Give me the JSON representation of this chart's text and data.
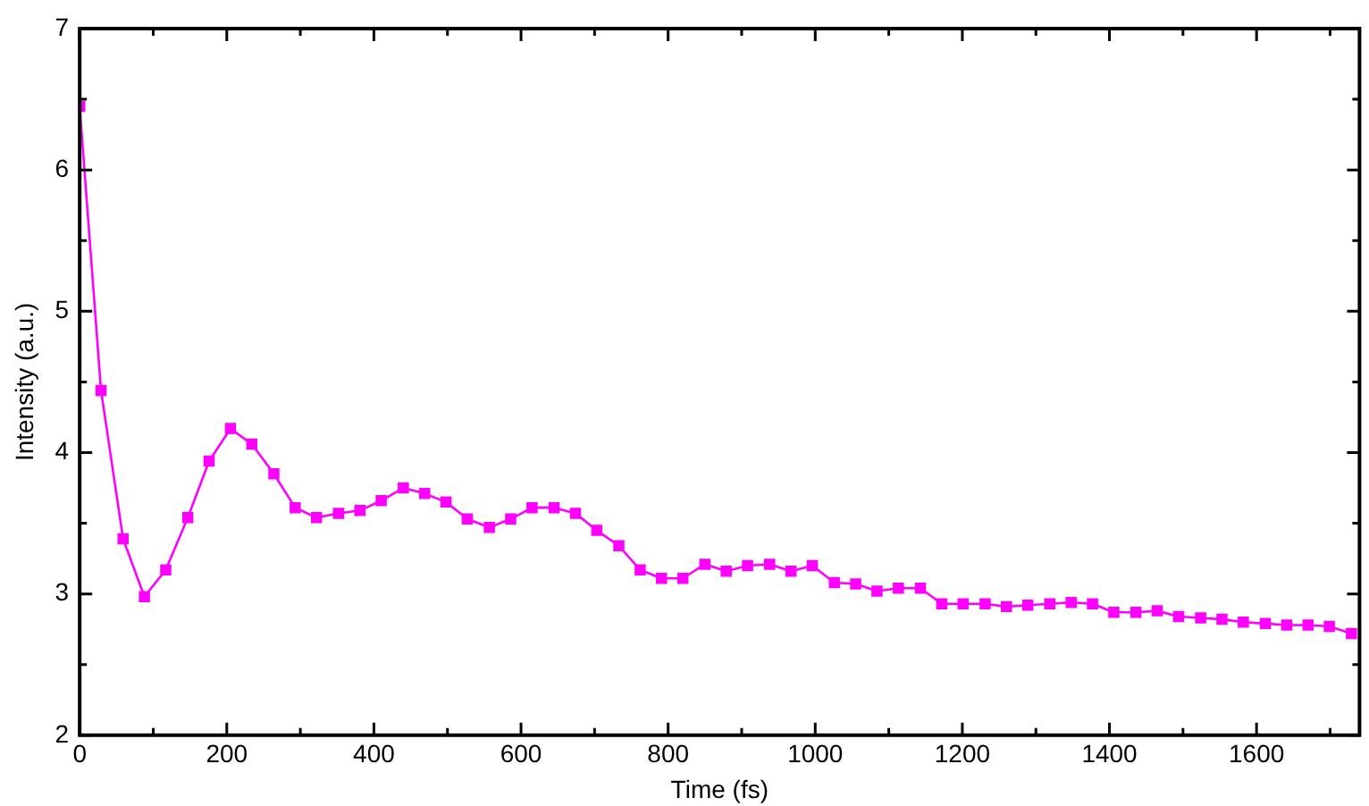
{
  "chart_data": {
    "type": "line",
    "xlabel": "Time (fs)",
    "ylabel": "Intensity (a.u.)",
    "x": [
      0,
      29,
      59,
      88,
      117,
      147,
      176,
      205,
      234,
      264,
      293,
      322,
      352,
      381,
      410,
      440,
      469,
      498,
      527,
      557,
      586,
      615,
      645,
      674,
      703,
      733,
      762,
      791,
      820,
      850,
      879,
      908,
      938,
      967,
      996,
      1026,
      1055,
      1084,
      1113,
      1143,
      1172,
      1201,
      1231,
      1260,
      1289,
      1319,
      1348,
      1377,
      1406,
      1436,
      1465,
      1494,
      1524,
      1553,
      1582,
      1612,
      1641,
      1670,
      1699,
      1729
    ],
    "series": [
      {
        "color": "#ff00ff",
        "values": [
          6.45,
          4.44,
          3.39,
          2.98,
          3.17,
          3.54,
          3.94,
          4.17,
          4.06,
          3.85,
          3.61,
          3.54,
          3.57,
          3.59,
          3.66,
          3.75,
          3.71,
          3.65,
          3.53,
          3.47,
          3.53,
          3.61,
          3.61,
          3.57,
          3.45,
          3.34,
          3.17,
          3.11,
          3.11,
          3.21,
          3.16,
          3.2,
          3.21,
          3.16,
          3.2,
          3.08,
          3.07,
          3.02,
          3.04,
          3.04,
          2.93,
          2.93,
          2.93,
          2.91,
          2.92,
          2.93,
          2.94,
          2.93,
          2.87,
          2.87,
          2.88,
          2.84,
          2.83,
          2.82,
          2.8,
          2.79,
          2.78,
          2.78,
          2.77,
          2.72
        ]
      }
    ],
    "xlim": [
      0,
      1740
    ],
    "xticks": [
      0,
      {
        "value": 100,
        "label": null
      },
      200,
      {
        "value": 300,
        "label": null
      },
      400,
      {
        "value": 500,
        "label": null
      },
      600,
      {
        "value": 700,
        "label": null
      },
      800,
      {
        "value": 900,
        "label": null
      },
      1000,
      {
        "value": 1100,
        "label": null
      },
      1200,
      {
        "value": 1300,
        "label": null
      },
      1400,
      {
        "value": 1500,
        "label": null
      },
      1600,
      {
        "value": 1700,
        "label": null
      }
    ],
    "ylim": [
      2,
      7
    ],
    "yticks": [
      2,
      {
        "value": 2.5,
        "label": null
      },
      3,
      {
        "value": 3.5,
        "label": null
      },
      4,
      {
        "value": 4.5,
        "label": null
      },
      5,
      {
        "value": 5.5,
        "label": null
      },
      6,
      {
        "value": 6.5,
        "label": null
      },
      7
    ],
    "grid": false,
    "legend": false,
    "marker": "square",
    "line_style": "solid"
  }
}
